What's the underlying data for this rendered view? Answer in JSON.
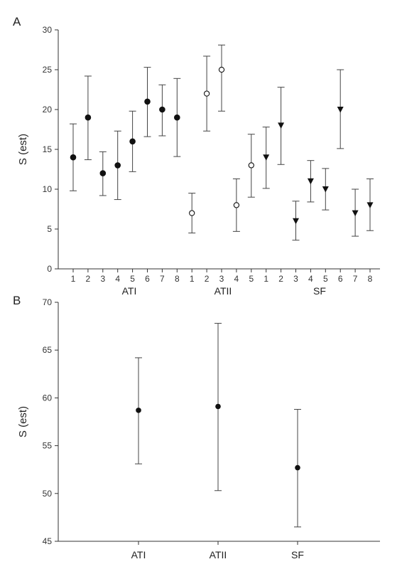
{
  "chart_data": [
    {
      "panel": "A",
      "type": "scatter",
      "ylabel": "S (est)",
      "ylim": [
        0,
        30
      ],
      "yticks": [
        0,
        5,
        10,
        15,
        20,
        25,
        30
      ],
      "xticks": [
        "1",
        "2",
        "3",
        "4",
        "5",
        "6",
        "7",
        "8",
        "1",
        "2",
        "3",
        "4",
        "5",
        "1",
        "2",
        "3",
        "4",
        "5",
        "6",
        "7",
        "8"
      ],
      "groups": [
        "ATI",
        "ATII",
        "SF"
      ],
      "series": [
        {
          "group": "ATI",
          "marker": "filled-circle",
          "x": [
            1,
            2,
            3,
            4,
            5,
            6,
            7,
            8
          ],
          "values": [
            14,
            19,
            12,
            13,
            16,
            21,
            20,
            19
          ],
          "lower": [
            9.8,
            13.7,
            9.2,
            8.7,
            12.2,
            16.6,
            16.7,
            14.1
          ],
          "upper": [
            18.2,
            24.2,
            14.7,
            17.3,
            19.8,
            25.3,
            23.1,
            23.9
          ]
        },
        {
          "group": "ATII",
          "marker": "open-circle",
          "x": [
            9,
            10,
            11,
            12,
            13
          ],
          "values": [
            7,
            22,
            25,
            8,
            13
          ],
          "lower": [
            4.5,
            17.3,
            19.8,
            4.7,
            9.0
          ],
          "upper": [
            9.5,
            26.7,
            28.1,
            11.3,
            16.9
          ]
        },
        {
          "group": "SF",
          "marker": "filled-triangle-down",
          "x": [
            14,
            15,
            16,
            17,
            18,
            19,
            20,
            21
          ],
          "values": [
            14,
            18,
            6,
            11,
            10,
            20,
            7,
            8
          ],
          "lower": [
            10.1,
            13.1,
            3.6,
            8.4,
            7.4,
            15.1,
            4.1,
            4.8
          ],
          "upper": [
            17.8,
            22.8,
            8.5,
            13.6,
            12.6,
            25.0,
            10.0,
            11.3
          ]
        }
      ]
    },
    {
      "panel": "B",
      "type": "scatter",
      "ylabel": "S (est)",
      "ylim": [
        45,
        70
      ],
      "yticks": [
        45,
        50,
        55,
        60,
        65,
        70
      ],
      "categories": [
        "ATI",
        "ATII",
        "SF"
      ],
      "values": [
        58.7,
        59.1,
        52.7
      ],
      "lower": [
        53.1,
        50.3,
        46.5
      ],
      "upper": [
        64.2,
        67.8,
        58.8
      ]
    }
  ],
  "panel_labels": [
    "A",
    "B"
  ]
}
